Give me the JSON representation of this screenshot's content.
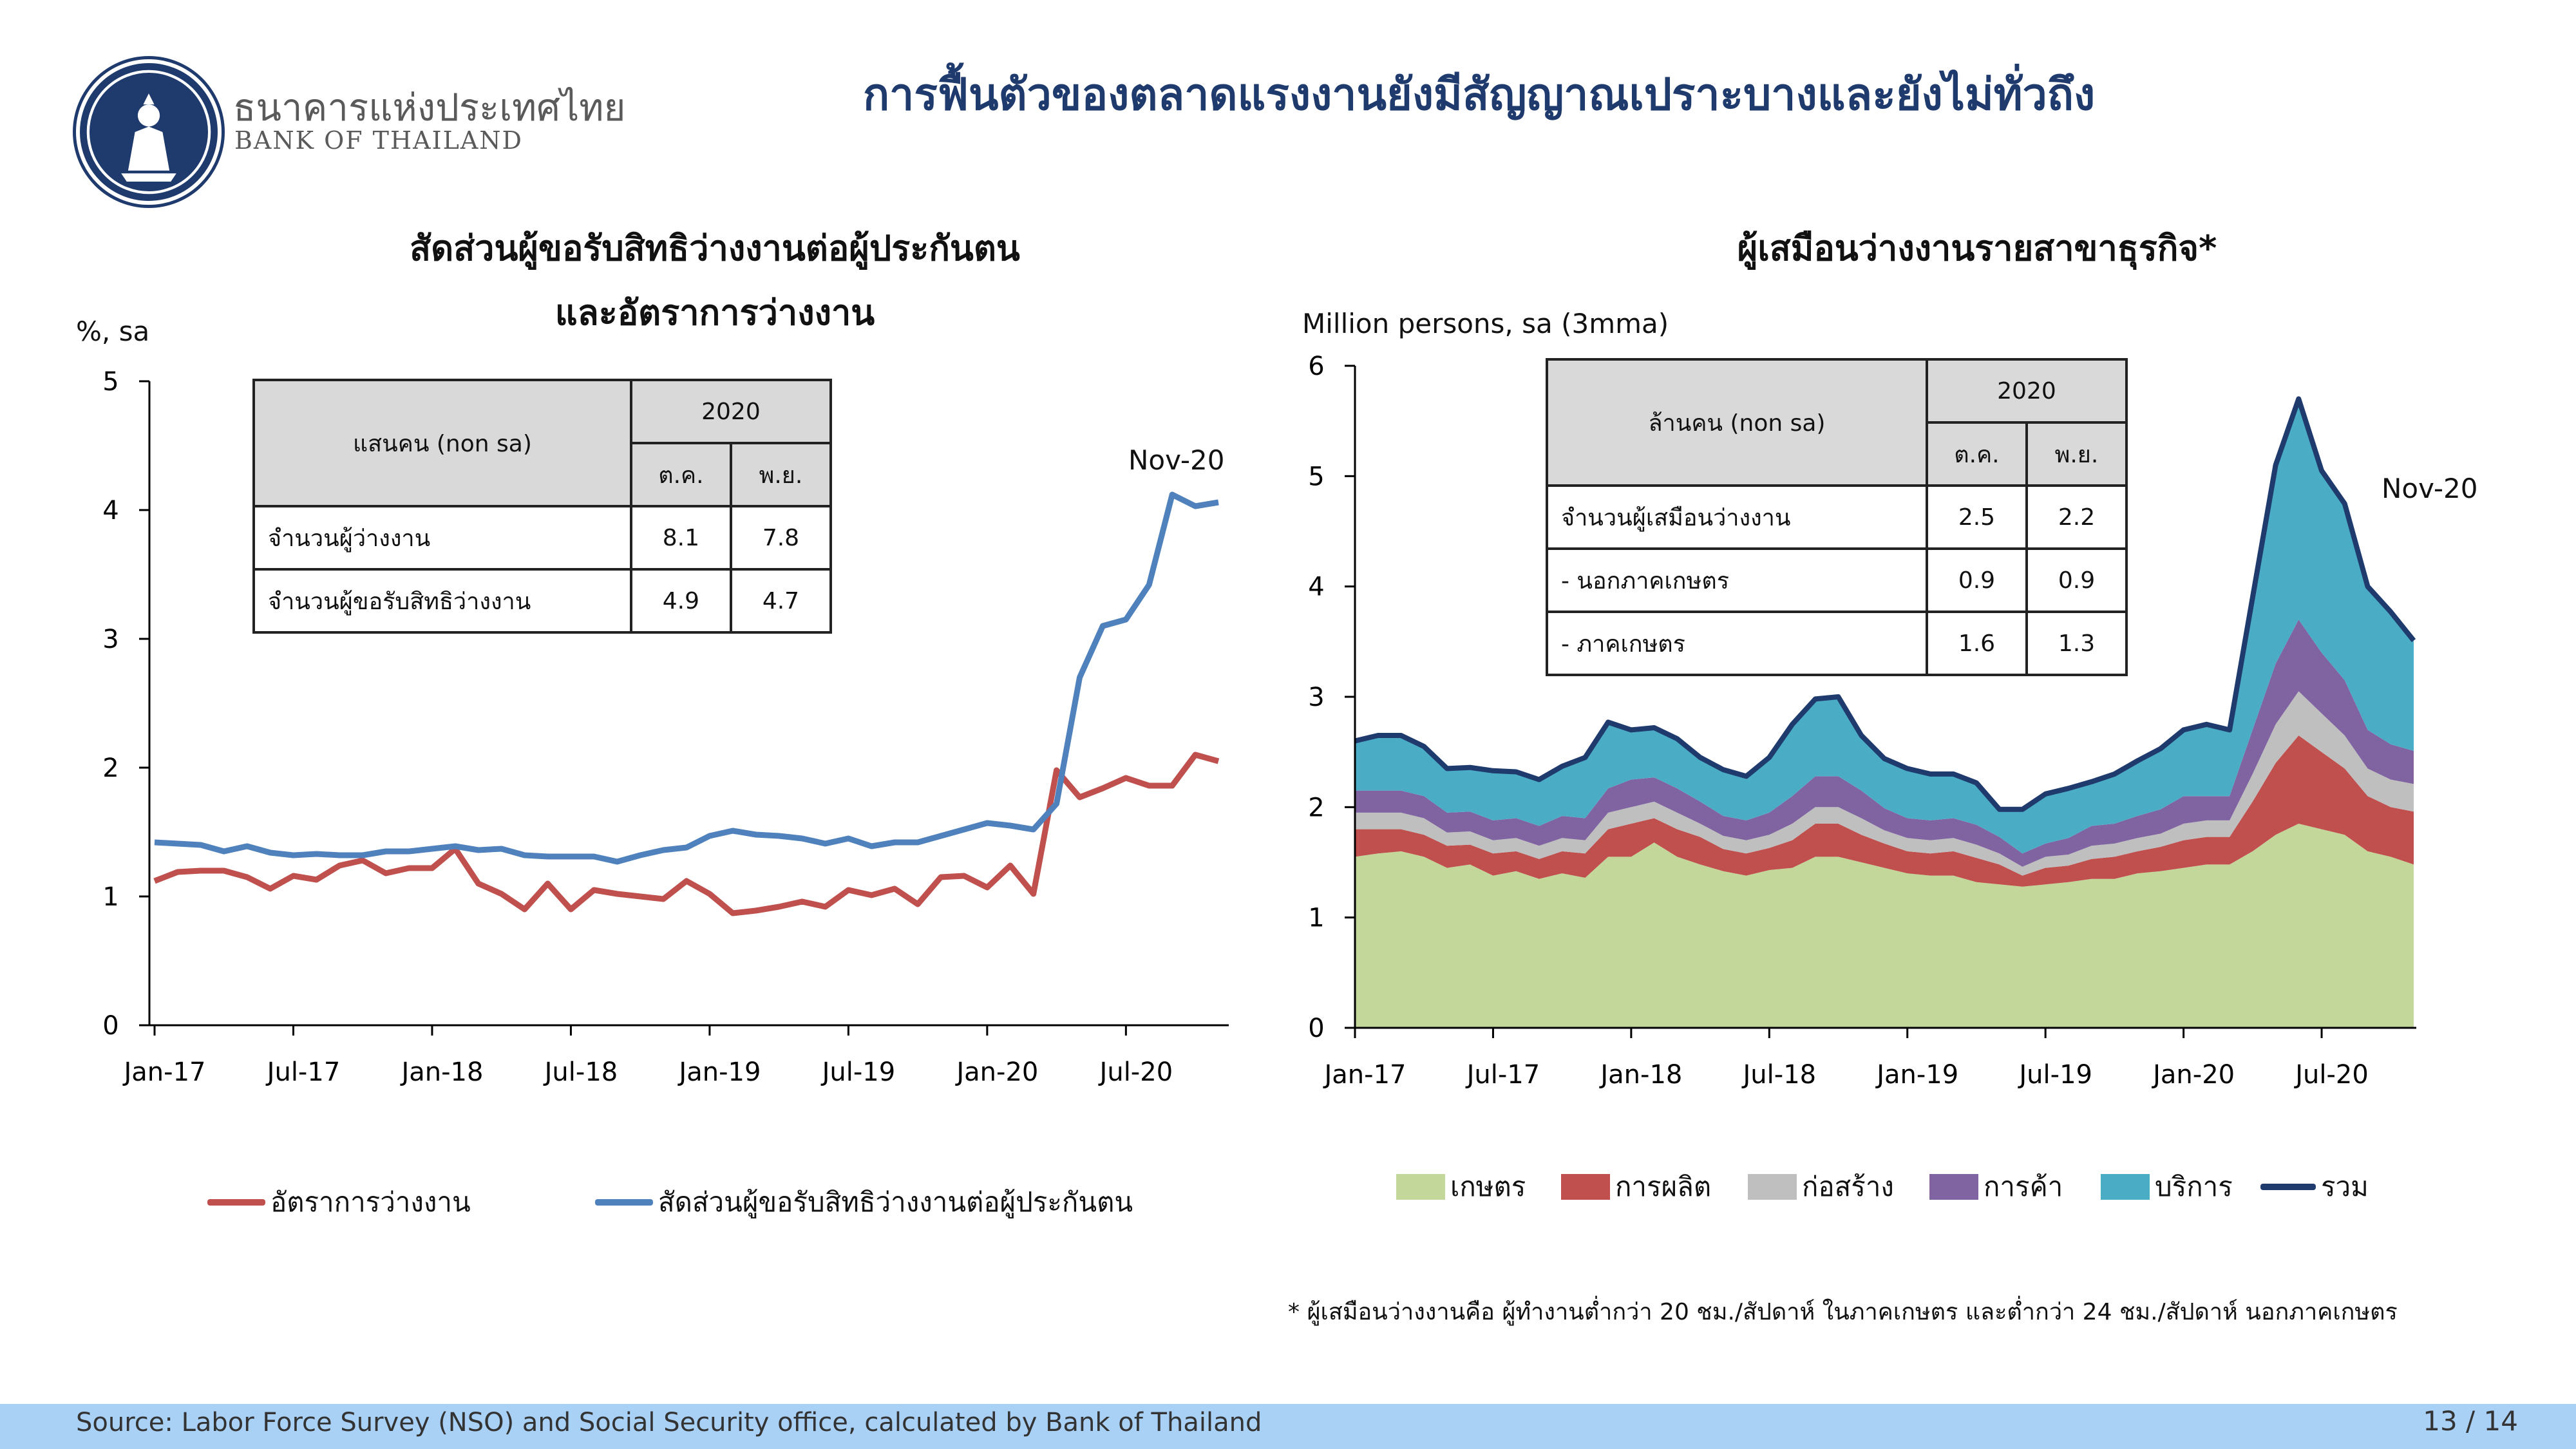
{
  "header": {
    "bank_name_th": "ธนาคารแห่งประเทศไทย",
    "bank_name_en": "BANK OF THAILAND",
    "title": "การฟื้นตัวของตลาดแรงงานยังมีสัญญาณเปราะบางและยังไม่ทั่วถึง"
  },
  "left_table": {
    "header_label": "แสนคน (non sa)",
    "year": "2020",
    "col1": "ต.ค.",
    "col2": "พ.ย.",
    "rows": [
      {
        "label": "จำนวนผู้ว่างงาน",
        "v1": "8.1",
        "v2": "7.8"
      },
      {
        "label": "จำนวนผู้ขอรับสิทธิว่างงาน",
        "v1": "4.9",
        "v2": "4.7"
      }
    ]
  },
  "right_table": {
    "header_label": "ล้านคน (non sa)",
    "year": "2020",
    "col1": "ต.ค.",
    "col2": "พ.ย.",
    "rows": [
      {
        "label": "จำนวนผู้เสมือนว่างงาน",
        "v1": "2.5",
        "v2": "2.2"
      },
      {
        "label": " - นอกภาคเกษตร",
        "v1": "0.9",
        "v2": "0.9"
      },
      {
        "label": " - ภาคเกษตร",
        "v1": "1.6",
        "v2": "1.3"
      }
    ]
  },
  "footnote": "*  ผู้เสมือนว่างงานคือ ผู้ทำงานต่ำกว่า 20 ชม./สัปดาห์ ในภาคเกษตร   และต่ำกว่า 24 ชม./สัปดาห์ นอกภาคเกษตร",
  "footer": {
    "source": "Source: Labor Force Survey (NSO) and Social Security office, calculated by Bank of Thailand",
    "page": "13 / 14"
  },
  "colors": {
    "unemployment": "#c0504d",
    "claims": "#4f81bd",
    "agri": "#c4d79b",
    "manufacturing": "#c0504d",
    "construction": "#bfbfbf",
    "trade": "#8064a2",
    "services": "#4bacc6",
    "total": "#1f3b6e"
  },
  "chart_data": [
    {
      "type": "line",
      "title": "สัดส่วนผู้ขอรับสิทธิว่างงานต่อผู้ประกันตน",
      "title_line2": "และอัตราการว่างงาน",
      "ylabel": "%, sa",
      "ylim": [
        0,
        5
      ],
      "yticks": [
        "0",
        "1",
        "2",
        "3",
        "4",
        "5"
      ],
      "xticks": [
        "Jan-17",
        "Jul-17",
        "Jan-18",
        "Jul-18",
        "Jan-19",
        "Jul-19",
        "Jan-20",
        "Jul-20"
      ],
      "annotation": "Nov-20",
      "series": [
        {
          "name": "อัตราการว่างงาน",
          "color": "#c0504d",
          "values": [
            1.12,
            1.19,
            1.2,
            1.2,
            1.15,
            1.06,
            1.16,
            1.13,
            1.24,
            1.28,
            1.18,
            1.22,
            1.22,
            1.37,
            1.1,
            1.02,
            0.9,
            1.1,
            0.9,
            1.05,
            1.02,
            1.0,
            0.98,
            1.12,
            1.02,
            0.87,
            0.89,
            0.92,
            0.96,
            0.92,
            1.05,
            1.01,
            1.06,
            0.94,
            1.15,
            1.16,
            1.07,
            1.24,
            1.02,
            1.98,
            1.77,
            1.84,
            1.92,
            1.86,
            1.86,
            2.1,
            2.05
          ]
        },
        {
          "name": "สัดส่วนผู้ขอรับสิทธิว่างงานต่อผู้ประกันตน",
          "color": "#4f81bd",
          "values": [
            1.42,
            1.41,
            1.4,
            1.35,
            1.39,
            1.34,
            1.32,
            1.33,
            1.32,
            1.32,
            1.35,
            1.35,
            1.37,
            1.39,
            1.36,
            1.37,
            1.32,
            1.31,
            1.31,
            1.31,
            1.27,
            1.32,
            1.36,
            1.38,
            1.47,
            1.51,
            1.48,
            1.47,
            1.45,
            1.41,
            1.45,
            1.39,
            1.42,
            1.42,
            1.47,
            1.52,
            1.57,
            1.55,
            1.52,
            1.72,
            2.7,
            3.1,
            3.15,
            3.42,
            4.12,
            4.03,
            4.06
          ]
        }
      ]
    },
    {
      "type": "area",
      "title": "ผู้เสมือนว่างงานรายสาขาธุรกิจ*",
      "ylabel": "Million persons, sa (3mma)",
      "ylim": [
        0,
        6
      ],
      "yticks": [
        "0",
        "1",
        "2",
        "3",
        "4",
        "5",
        "6"
      ],
      "xticks": [
        "Jan-17",
        "Jul-17",
        "Jan-18",
        "Jul-18",
        "Jan-19",
        "Jul-19",
        "Jan-20",
        "Jul-20"
      ],
      "annotation": "Nov-20",
      "series": [
        {
          "name": "เกษตร",
          "color": "#c4d79b",
          "values": [
            1.55,
            1.58,
            1.6,
            1.55,
            1.45,
            1.48,
            1.38,
            1.42,
            1.35,
            1.4,
            1.36,
            1.55,
            1.55,
            1.68,
            1.55,
            1.48,
            1.42,
            1.38,
            1.43,
            1.45,
            1.55,
            1.55,
            1.5,
            1.45,
            1.4,
            1.38,
            1.38,
            1.32,
            1.3,
            1.28,
            1.3,
            1.32,
            1.35,
            1.35,
            1.4,
            1.42,
            1.45,
            1.48,
            1.48,
            1.6,
            1.75,
            1.85,
            1.8,
            1.75,
            1.6,
            1.55,
            1.48
          ]
        },
        {
          "name": "การผลิต",
          "color": "#c0504d",
          "values": [
            0.25,
            0.22,
            0.2,
            0.2,
            0.2,
            0.18,
            0.2,
            0.18,
            0.18,
            0.2,
            0.22,
            0.25,
            0.3,
            0.22,
            0.25,
            0.25,
            0.2,
            0.2,
            0.2,
            0.25,
            0.3,
            0.3,
            0.25,
            0.22,
            0.2,
            0.2,
            0.22,
            0.22,
            0.18,
            0.1,
            0.15,
            0.15,
            0.18,
            0.2,
            0.2,
            0.22,
            0.25,
            0.25,
            0.25,
            0.45,
            0.65,
            0.8,
            0.7,
            0.6,
            0.5,
            0.45,
            0.48
          ]
        },
        {
          "name": "ก่อสร้าง",
          "color": "#bfbfbf",
          "values": [
            0.15,
            0.15,
            0.15,
            0.15,
            0.12,
            0.12,
            0.12,
            0.12,
            0.12,
            0.12,
            0.12,
            0.15,
            0.15,
            0.15,
            0.15,
            0.12,
            0.12,
            0.12,
            0.12,
            0.15,
            0.15,
            0.15,
            0.15,
            0.12,
            0.12,
            0.12,
            0.12,
            0.12,
            0.1,
            0.08,
            0.1,
            0.1,
            0.12,
            0.12,
            0.12,
            0.12,
            0.15,
            0.15,
            0.15,
            0.25,
            0.35,
            0.4,
            0.35,
            0.3,
            0.25,
            0.25,
            0.25
          ]
        },
        {
          "name": "การค้า",
          "color": "#8064a2",
          "values": [
            0.2,
            0.2,
            0.2,
            0.2,
            0.18,
            0.18,
            0.18,
            0.18,
            0.18,
            0.2,
            0.2,
            0.22,
            0.25,
            0.22,
            0.22,
            0.2,
            0.18,
            0.18,
            0.2,
            0.25,
            0.28,
            0.28,
            0.25,
            0.2,
            0.18,
            0.18,
            0.18,
            0.18,
            0.15,
            0.12,
            0.12,
            0.15,
            0.18,
            0.18,
            0.2,
            0.22,
            0.25,
            0.22,
            0.22,
            0.4,
            0.55,
            0.65,
            0.55,
            0.5,
            0.35,
            0.32,
            0.3
          ]
        },
        {
          "name": "บริการ",
          "color": "#4bacc6",
          "values": [
            0.45,
            0.5,
            0.5,
            0.45,
            0.4,
            0.4,
            0.45,
            0.42,
            0.42,
            0.45,
            0.55,
            0.6,
            0.45,
            0.45,
            0.45,
            0.4,
            0.42,
            0.4,
            0.5,
            0.65,
            0.7,
            0.72,
            0.5,
            0.45,
            0.45,
            0.42,
            0.4,
            0.38,
            0.25,
            0.4,
            0.45,
            0.45,
            0.4,
            0.45,
            0.5,
            0.55,
            0.6,
            0.65,
            0.6,
            1.2,
            1.8,
            2.0,
            1.65,
            1.6,
            1.3,
            1.2,
            1.0
          ]
        }
      ],
      "total": {
        "name": "รวม",
        "color": "#1f3b6e"
      }
    }
  ]
}
